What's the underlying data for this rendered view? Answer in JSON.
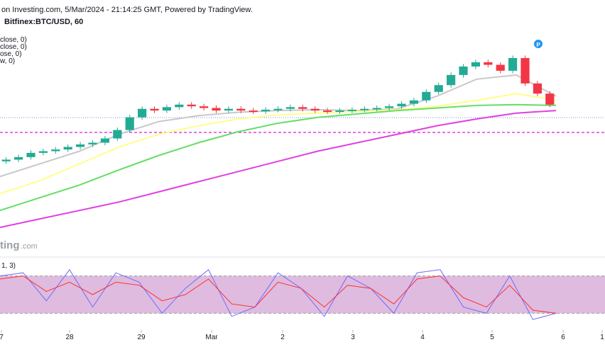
{
  "header": {
    "source_line": "on Investing.com, 5/Mar/2024 - 21:14:25 GMT, Powered by TradingView.",
    "symbol_line": "Bitfinex:BTC/USD, 60"
  },
  "legend_items": [
    "close, 0)",
    "close, 0)",
    "ose, 0)",
    "w, 0)"
  ],
  "watermark": {
    "bold": "ting",
    "light": ".com"
  },
  "pivot_badge": "P",
  "oscillator_label": "1, 3)",
  "x_ticks": [
    "7",
    "28",
    "29",
    "Mar",
    "2",
    "3",
    "4",
    "5",
    "6",
    "1"
  ],
  "colors": {
    "up_candle": "#22ab94",
    "down_candle": "#f23645",
    "ma_fast": "#c8c8c8",
    "ma_slow": "#ffff80",
    "ma_100": "#66dd66",
    "ma_200": "#e040e0",
    "dotted_level": "#7b8fd6",
    "stoch_k": "#6b6bff",
    "stoch_d": "#ff3030",
    "osc_band": "#dcb4dc"
  },
  "chart_data": {
    "type": "candlestick",
    "title": "Bitfinex:BTC/USD, 60",
    "x_ticks": [
      "7",
      "28",
      "29",
      "Mar",
      "2",
      "3",
      "4",
      "5",
      "6",
      "1"
    ],
    "candles_close_approx": [
      100,
      103,
      108,
      110,
      112,
      115,
      118,
      120,
      125,
      135,
      150,
      160,
      158,
      162,
      165,
      163,
      161,
      158,
      160,
      158,
      157,
      159,
      160,
      162,
      160,
      158,
      157,
      158,
      159,
      160,
      161,
      163,
      166,
      170,
      180,
      188,
      200,
      210,
      215,
      212,
      205,
      220,
      190,
      178,
      165
    ],
    "moving_averages": [
      {
        "name": "",
        "values_approx": [
          80,
          95,
          110,
          130,
          145,
          152,
          156,
          158,
          159,
          158,
          160,
          175,
          195,
          200,
          175
        ]
      },
      {
        "name": "",
        "values_approx": [
          60,
          75,
          95,
          115,
          130,
          140,
          148,
          153,
          155,
          157,
          159,
          163,
          170,
          178,
          170
        ]
      },
      {
        "name": "",
        "values_approx": [
          40,
          55,
          70,
          88,
          105,
          120,
          133,
          143,
          150,
          154,
          158,
          161,
          164,
          165,
          164
        ]
      },
      {
        "name": "",
        "values_approx": [
          20,
          30,
          40,
          50,
          62,
          74,
          86,
          98,
          110,
          120,
          130,
          140,
          148,
          155,
          158
        ]
      }
    ],
    "oscillator": {
      "ylim": [
        0,
        100
      ],
      "band": [
        20,
        80
      ],
      "k_approx": [
        80,
        85,
        40,
        90,
        30,
        85,
        70,
        20,
        60,
        90,
        15,
        30,
        85,
        60,
        15,
        80,
        60,
        20,
        85,
        90,
        30,
        20,
        80,
        10,
        20
      ],
      "d_approx": [
        75,
        80,
        55,
        70,
        50,
        70,
        65,
        40,
        50,
        75,
        35,
        30,
        70,
        60,
        30,
        65,
        60,
        35,
        75,
        80,
        45,
        30,
        65,
        25,
        20
      ]
    }
  }
}
